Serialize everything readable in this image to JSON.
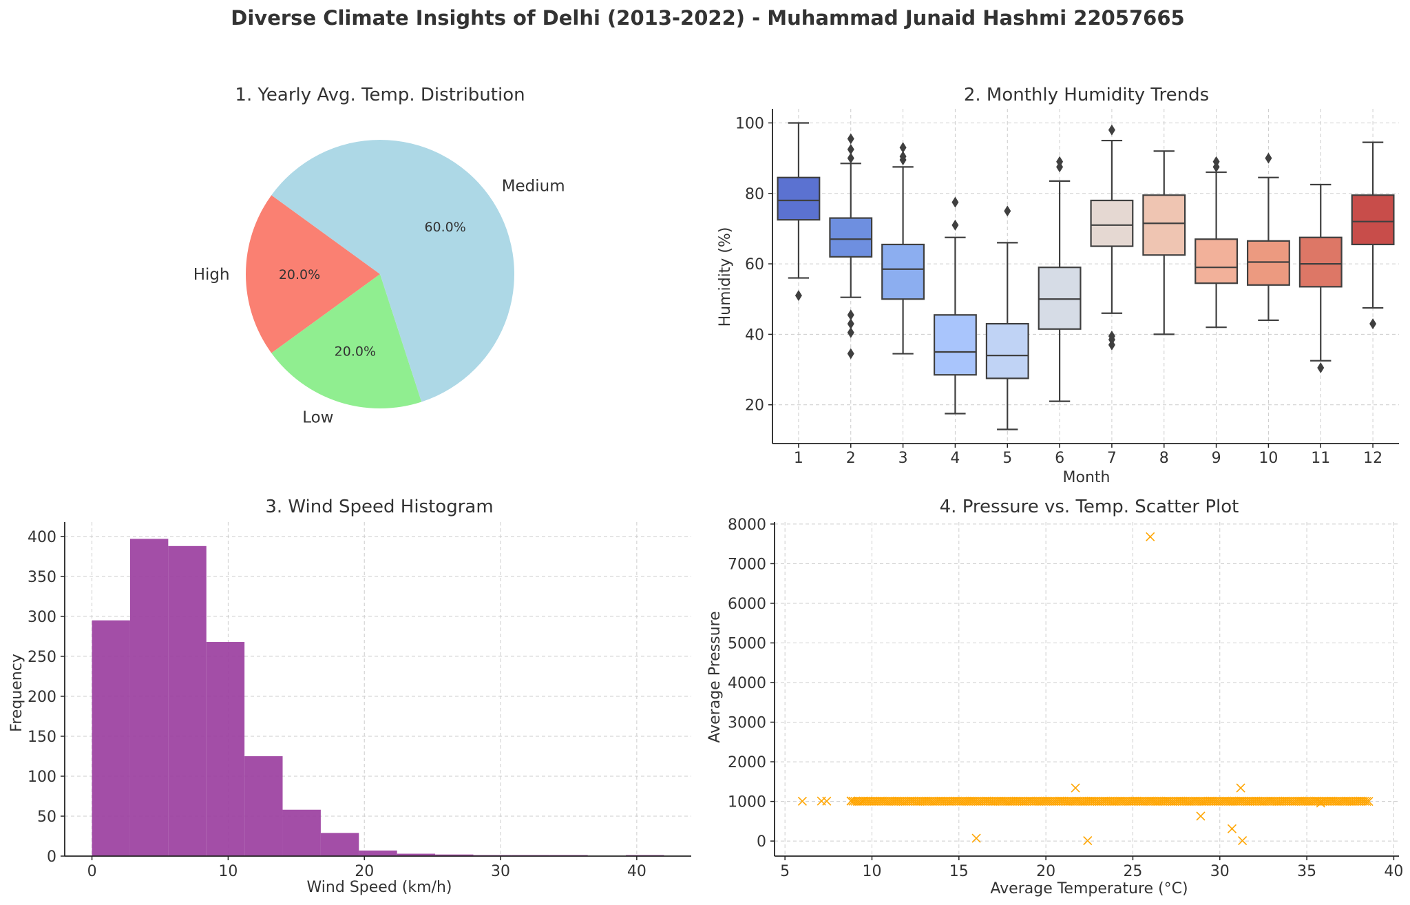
{
  "figure": {
    "title": "Diverse Climate Insights of Delhi (2013-2022) - Muhammad Junaid Hashmi 22057665"
  },
  "chart_data": [
    {
      "type": "pie",
      "title": "1. Yearly Avg. Temp. Distribution",
      "labels": [
        "High",
        "Low",
        "Medium"
      ],
      "values": [
        20.0,
        20.0,
        60.0
      ],
      "pct_labels": [
        "20.0%",
        "20.0%",
        "60.0%"
      ],
      "colors": [
        "#fa8072",
        "#90ee90",
        "#add8e6"
      ]
    },
    {
      "type": "box",
      "title": "2. Monthly Humidity Trends",
      "xlabel": "Month",
      "ylabel": "Humidity (%)",
      "categories": [
        "1",
        "2",
        "3",
        "4",
        "5",
        "6",
        "7",
        "8",
        "9",
        "10",
        "11",
        "12"
      ],
      "ylim": [
        9,
        104
      ],
      "yticks": [
        20,
        40,
        60,
        80,
        100
      ],
      "boxes": [
        {
          "month": "1",
          "whisker_low": 56,
          "q1": 72.5,
          "median": 78,
          "q3": 84.5,
          "whisker_high": 100,
          "outliers": [
            51
          ],
          "color": "#5b72d1"
        },
        {
          "month": "2",
          "whisker_low": 50.5,
          "q1": 62,
          "median": 67,
          "q3": 73,
          "whisker_high": 88.5,
          "outliers": [
            34.5,
            40.5,
            43,
            45.5,
            90,
            92.5,
            95.5
          ],
          "color": "#6e8fe0"
        },
        {
          "month": "3",
          "whisker_low": 34.5,
          "q1": 50,
          "median": 58.5,
          "q3": 65.5,
          "whisker_high": 87.5,
          "outliers": [
            89.5,
            90.5,
            93
          ],
          "color": "#8caef0"
        },
        {
          "month": "4",
          "whisker_low": 17.5,
          "q1": 28.5,
          "median": 35,
          "q3": 45.5,
          "whisker_high": 67.5,
          "outliers": [
            71,
            77.5
          ],
          "color": "#a9c5fc"
        },
        {
          "month": "5",
          "whisker_low": 13,
          "q1": 27.5,
          "median": 34,
          "q3": 43,
          "whisker_high": 66,
          "outliers": [
            75
          ],
          "color": "#c0d3f5"
        },
        {
          "month": "6",
          "whisker_low": 21,
          "q1": 41.5,
          "median": 50,
          "q3": 59,
          "whisker_high": 83.5,
          "outliers": [
            87.5,
            89
          ],
          "color": "#d6dce6"
        },
        {
          "month": "7",
          "whisker_low": 46,
          "q1": 65,
          "median": 71,
          "q3": 78,
          "whisker_high": 95,
          "outliers": [
            37,
            38.5,
            39.5,
            98
          ],
          "color": "#e5d8d2"
        },
        {
          "month": "8",
          "whisker_low": 40,
          "q1": 62.5,
          "median": 71.5,
          "q3": 79.5,
          "whisker_high": 92,
          "outliers": [],
          "color": "#efc5b2"
        },
        {
          "month": "9",
          "whisker_low": 42,
          "q1": 54.5,
          "median": 59,
          "q3": 67,
          "whisker_high": 86,
          "outliers": [
            87.5,
            89
          ],
          "color": "#f2b19a"
        },
        {
          "month": "10",
          "whisker_low": 44,
          "q1": 54,
          "median": 60.5,
          "q3": 66.5,
          "whisker_high": 84.5,
          "outliers": [
            90
          ],
          "color": "#ec9a80"
        },
        {
          "month": "11",
          "whisker_low": 32.5,
          "q1": 53.5,
          "median": 60,
          "q3": 67.5,
          "whisker_high": 82.5,
          "outliers": [
            30.5
          ],
          "color": "#dd7766"
        },
        {
          "month": "12",
          "whisker_low": 47.5,
          "q1": 65.5,
          "median": 72,
          "q3": 79.5,
          "whisker_high": 94.5,
          "outliers": [
            43
          ],
          "color": "#c84d4a"
        }
      ]
    },
    {
      "type": "histogram",
      "title": "3. Wind Speed Histogram",
      "xlabel": "Wind Speed (km/h)",
      "ylabel": "Frequency",
      "color": "#9b3fa0",
      "bin_edges": [
        0,
        2.8,
        5.6,
        8.4,
        11.2,
        14.0,
        16.8,
        19.6,
        22.4,
        25.2,
        28.0,
        30.8,
        33.6,
        36.4,
        39.2,
        42.0
      ],
      "counts": [
        295,
        397,
        388,
        268,
        125,
        58,
        29,
        7,
        3,
        2,
        1,
        1,
        1,
        0,
        1
      ],
      "xlim": [
        -2,
        44
      ],
      "xticks": [
        0,
        10,
        20,
        30,
        40
      ],
      "ylim": [
        0,
        418
      ],
      "yticks": [
        0,
        50,
        100,
        150,
        200,
        250,
        300,
        350,
        400
      ]
    },
    {
      "type": "scatter",
      "title": "4. Pressure vs. Temp. Scatter Plot",
      "xlabel": "Average Temperature (°C)",
      "ylabel": "Average Pressure",
      "marker": "x",
      "color": "#ffa500",
      "xlim": [
        4.4,
        40.3
      ],
      "xticks": [
        5,
        10,
        15,
        20,
        25,
        30,
        35,
        40
      ],
      "ylim": [
        -380,
        8050
      ],
      "yticks": [
        0,
        1000,
        2000,
        3000,
        4000,
        5000,
        6000,
        7000,
        8000
      ],
      "main_band": {
        "x_range": [
          6,
          38.6
        ],
        "pressure": 1005
      },
      "points": [
        {
          "x": 26.0,
          "y": 7680
        },
        {
          "x": 21.7,
          "y": 1340
        },
        {
          "x": 31.2,
          "y": 1340
        },
        {
          "x": 28.9,
          "y": 630
        },
        {
          "x": 30.7,
          "y": 310
        },
        {
          "x": 16.0,
          "y": 70
        },
        {
          "x": 22.4,
          "y": 10
        },
        {
          "x": 31.3,
          "y": 10
        },
        {
          "x": 6.0,
          "y": 1005
        },
        {
          "x": 7.1,
          "y": 1010
        },
        {
          "x": 7.4,
          "y": 1008
        },
        {
          "x": 8.8,
          "y": 1012
        },
        {
          "x": 9.5,
          "y": 1009
        },
        {
          "x": 35.8,
          "y": 960
        }
      ]
    }
  ]
}
